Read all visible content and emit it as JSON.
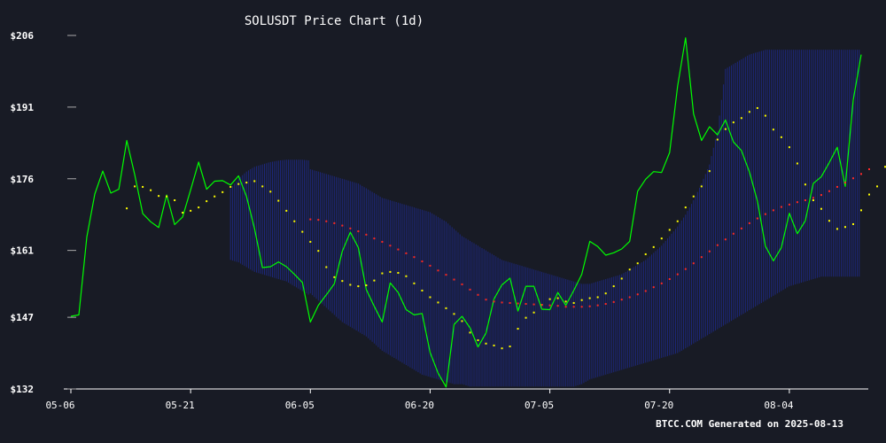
{
  "chart_data": {
    "type": "line",
    "title": "SOLUSDT Price Chart (1d)",
    "footer": "BTCC.COM Generated on 2025-08-13",
    "xlabel": "",
    "ylabel": "",
    "ylim": [
      132,
      206
    ],
    "y_ticks": [
      {
        "value": 206,
        "label": "$206"
      },
      {
        "value": 191,
        "label": "$191"
      },
      {
        "value": 176,
        "label": "$176"
      },
      {
        "value": 161,
        "label": "$161"
      },
      {
        "value": 147,
        "label": "$147"
      },
      {
        "value": 132,
        "label": "$132"
      }
    ],
    "x_ticks": [
      {
        "index": 0,
        "label": "05-06"
      },
      {
        "index": 15,
        "label": "05-21"
      },
      {
        "index": 30,
        "label": "06-05"
      },
      {
        "index": 45,
        "label": "06-20"
      },
      {
        "index": 60,
        "label": "07-05"
      },
      {
        "index": 75,
        "label": "07-20"
      },
      {
        "index": 90,
        "label": "08-04"
      }
    ],
    "grid": false,
    "legend": "none",
    "colors": {
      "background": "#181b25",
      "axis": "#ffffff",
      "price": "#00ff00",
      "ma_short": "#ffff00",
      "ma_long": "#ff2a2a",
      "band": "#1e2a8c"
    },
    "series": [
      {
        "key": "price",
        "style": "line",
        "start_index": 0,
        "values": [
          147.2,
          147.5,
          163.8,
          172.8,
          177.6,
          173.0,
          173.8,
          184.0,
          176.8,
          168.7,
          167.0,
          165.8,
          172.6,
          166.4,
          168.0,
          173.7,
          179.5,
          173.8,
          175.5,
          175.6,
          174.7,
          176.6,
          172.3,
          165.6,
          157.4,
          157.6,
          158.6,
          157.6,
          156.0,
          154.3,
          146.0,
          149.5,
          151.7,
          154.0,
          160.8,
          164.8,
          161.6,
          152.8,
          149.3,
          146.0,
          154.2,
          152.2,
          148.6,
          147.5,
          147.8,
          139.6,
          135.3,
          132.4,
          145.5,
          147.2,
          144.8,
          140.8,
          143.7,
          150.8,
          153.8,
          155.2,
          148.3,
          153.5,
          153.5,
          148.7,
          148.6,
          152.2,
          149.5,
          152.6,
          156.0,
          162.9,
          161.8,
          160.0,
          160.5,
          161.3,
          162.9,
          173.4,
          175.9,
          177.5,
          177.3,
          181.5,
          195.4,
          205.5,
          189.6,
          184.0,
          186.9,
          185.2,
          188.3,
          183.7,
          181.9,
          177.4,
          171.3,
          161.9,
          158.8,
          161.6,
          168.8,
          164.5,
          167.2,
          175.0,
          176.4,
          179.4,
          182.6,
          174.4,
          192.5,
          202.0
        ]
      },
      {
        "key": "ma_short",
        "style": "dots",
        "start_index": 7,
        "values": [
          169.8,
          174.4,
          174.3,
          173.6,
          172.4,
          172.3,
          171.5,
          168.9,
          169.3,
          170.0,
          171.3,
          172.3,
          173.2,
          174.3,
          174.9,
          175.2,
          175.5,
          174.4,
          173.3,
          171.4,
          169.3,
          167.1,
          164.9,
          162.8,
          160.9,
          157.5,
          155.4,
          154.6,
          153.8,
          153.5,
          153.7,
          154.7,
          156.2,
          156.5,
          156.3,
          155.6,
          154.1,
          152.6,
          151.2,
          150.1,
          148.9,
          147.7,
          146.2,
          143.8,
          142.2,
          141.5,
          141.1,
          140.5,
          140.9,
          144.6,
          146.9,
          148.0,
          149.6,
          150.8,
          151.0,
          150.3,
          150.0,
          150.6,
          151.0,
          151.2,
          152.0,
          153.5,
          155.1,
          157.0,
          158.3,
          160.2,
          161.7,
          163.5,
          165.3,
          167.1,
          170.0,
          172.3,
          174.4,
          177.6,
          184.2,
          186.4,
          187.8,
          188.7,
          190.0,
          190.8,
          189.2,
          186.3,
          184.7,
          182.6,
          179.2,
          174.8,
          171.5,
          169.7,
          167.2,
          165.5,
          165.9,
          166.5,
          169.4,
          172.7,
          174.4,
          178.5,
          183.8
        ]
      },
      {
        "key": "ma_long",
        "style": "dots",
        "start_index": 30,
        "values": [
          167.5,
          167.4,
          167.1,
          166.7,
          166.2,
          165.6,
          165.0,
          164.3,
          163.5,
          162.8,
          162.0,
          161.2,
          160.4,
          159.6,
          158.7,
          157.8,
          156.8,
          155.9,
          154.9,
          153.9,
          152.8,
          151.7,
          150.7,
          150.3,
          150.1,
          150.0,
          149.9,
          149.8,
          149.7,
          149.6,
          149.5,
          149.4,
          149.2,
          149.2,
          149.2,
          149.3,
          149.5,
          149.8,
          150.2,
          150.7,
          151.2,
          151.8,
          152.5,
          153.3,
          154.1,
          155.0,
          156.0,
          157.1,
          158.3,
          159.6,
          160.8,
          162.1,
          163.3,
          164.5,
          165.6,
          166.7,
          167.7,
          168.6,
          169.4,
          170.1,
          170.6,
          171.1,
          171.5,
          172.0,
          172.6,
          173.4,
          174.3,
          175.2,
          176.1,
          177.0,
          178.0
        ]
      }
    ],
    "bands": {
      "style": "vertical-lines",
      "segments": [
        {
          "start_index": 20,
          "upper": [
            174.0,
            176.0,
            177.5,
            178.5,
            179.0,
            179.5,
            179.8,
            180.0,
            180.0,
            180.0,
            179.8
          ],
          "lower": [
            159.0,
            158.5,
            157.5,
            156.5,
            156.0,
            155.5,
            155.0,
            154.5,
            153.5,
            152.5,
            151.5
          ]
        },
        {
          "start_index": 30,
          "upper": [
            178.0,
            177.5,
            177.0,
            176.5,
            176.0,
            175.5,
            175.0,
            174.0,
            173.0,
            172.0,
            171.5,
            171.0,
            170.5,
            170.0,
            169.5,
            169.0,
            168.0,
            167.0,
            165.5,
            164.0,
            163.0,
            162.0,
            161.0,
            160.0,
            159.0,
            158.5,
            158.0,
            157.5,
            157.0,
            156.5,
            156.0,
            155.5,
            155.0,
            154.5,
            154.0,
            154.0,
            154.5,
            155.0,
            155.5,
            156.0,
            157.0,
            158.0,
            159.0,
            160.5,
            162.0,
            164.0,
            166.0,
            168.5,
            171.5,
            175.0,
            179.0,
            186.0,
            199.0,
            200.0,
            201.0,
            202.0,
            202.5,
            203.0,
            203.0,
            203.0,
            203.0,
            203.0,
            203.0,
            203.0,
            203.0,
            203.0,
            203.0,
            203.0,
            203.0,
            203.0
          ],
          "lower": [
            152.0,
            150.5,
            149.0,
            147.5,
            146.0,
            145.0,
            144.0,
            143.0,
            141.5,
            140.0,
            139.0,
            138.0,
            137.0,
            136.0,
            135.0,
            134.5,
            134.0,
            133.5,
            133.0,
            133.0,
            132.5,
            132.5,
            132.5,
            132.5,
            132.5,
            132.5,
            132.5,
            132.5,
            132.5,
            132.5,
            132.5,
            132.5,
            132.5,
            132.5,
            133.0,
            134.0,
            134.5,
            135.0,
            135.5,
            136.0,
            136.5,
            137.0,
            137.5,
            138.0,
            138.5,
            139.0,
            139.5,
            140.5,
            141.5,
            142.5,
            143.5,
            144.5,
            145.5,
            146.5,
            147.5,
            148.5,
            149.5,
            150.5,
            151.5,
            152.5,
            153.5,
            154.0,
            154.5,
            155.0,
            155.5,
            155.5,
            155.5,
            155.5,
            155.5,
            155.5
          ]
        }
      ]
    }
  }
}
